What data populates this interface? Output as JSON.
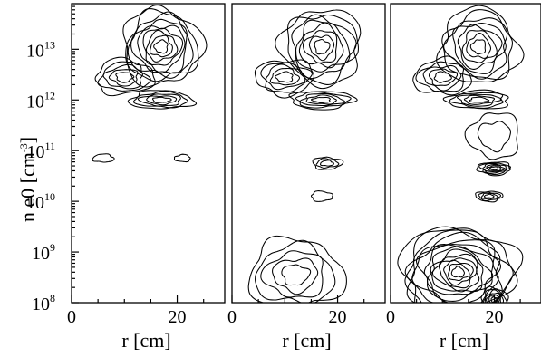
{
  "chart_data": {
    "type": "contour",
    "panels": [
      {
        "id": "left",
        "xlabel": "r [cm]",
        "x_ticks": [
          "0",
          "20"
        ],
        "show_y_axis": true,
        "features": [
          {
            "r": 17,
            "log_ne": 13.05,
            "levels": 9,
            "rx": 7.5,
            "ry": 0.75
          },
          {
            "r": 10,
            "log_ne": 12.45,
            "levels": 5,
            "rx": 5.5,
            "ry": 0.35
          },
          {
            "r": 17,
            "log_ne": 12.0,
            "levels": 5,
            "rx": 6.0,
            "ry": 0.18
          },
          {
            "r": 6,
            "log_ne": 10.85,
            "levels": 1,
            "rx": 2.0,
            "ry": 0.08
          },
          {
            "r": 21,
            "log_ne": 10.85,
            "levels": 1,
            "rx": 1.5,
            "ry": 0.07
          }
        ]
      },
      {
        "id": "middle",
        "xlabel": "r [cm]",
        "x_ticks": [
          "0",
          "20"
        ],
        "show_y_axis": false,
        "features": [
          {
            "r": 17,
            "log_ne": 13.05,
            "levels": 8,
            "rx": 7.5,
            "ry": 0.75
          },
          {
            "r": 10,
            "log_ne": 12.45,
            "levels": 5,
            "rx": 5.5,
            "ry": 0.35
          },
          {
            "r": 17,
            "log_ne": 12.0,
            "levels": 5,
            "rx": 6.0,
            "ry": 0.18
          },
          {
            "r": 18,
            "log_ne": 10.75,
            "levels": 3,
            "rx": 2.8,
            "ry": 0.12
          },
          {
            "r": 17,
            "log_ne": 10.1,
            "levels": 1,
            "rx": 2.0,
            "ry": 0.1
          },
          {
            "r": 12,
            "log_ne": 8.55,
            "levels": 5,
            "rx": 9.0,
            "ry": 0.7
          }
        ]
      },
      {
        "id": "right",
        "xlabel": "r [cm]",
        "x_ticks": [
          "0",
          "20"
        ],
        "show_y_axis": false,
        "features": [
          {
            "r": 17,
            "log_ne": 13.05,
            "levels": 8,
            "rx": 7.5,
            "ry": 0.75
          },
          {
            "r": 10,
            "log_ne": 12.45,
            "levels": 5,
            "rx": 5.5,
            "ry": 0.35
          },
          {
            "r": 17,
            "log_ne": 12.0,
            "levels": 5,
            "rx": 6.0,
            "ry": 0.18
          },
          {
            "r": 20,
            "log_ne": 11.3,
            "levels": 2,
            "rx": 5.0,
            "ry": 0.45
          },
          {
            "r": 20,
            "log_ne": 10.65,
            "levels": 6,
            "rx": 3.2,
            "ry": 0.13
          },
          {
            "r": 19,
            "log_ne": 10.1,
            "levels": 4,
            "rx": 2.6,
            "ry": 0.1
          },
          {
            "r": 13,
            "log_ne": 8.6,
            "levels": 14,
            "rx": 11.0,
            "ry": 0.9
          },
          {
            "r": 20,
            "log_ne": 8.05,
            "levels": 6,
            "rx": 2.5,
            "ry": 0.25
          }
        ]
      }
    ],
    "ylabel_main": "n e0 [cm",
    "ylabel_sup": "-3",
    "ylabel_end": "]",
    "y_ticks": [
      {
        "exp": 13,
        "label": "10",
        "sup": "13"
      },
      {
        "exp": 12,
        "label": "10",
        "sup": "12"
      },
      {
        "exp": 11,
        "label": "10",
        "sup": "11"
      },
      {
        "exp": 10,
        "label": "10",
        "sup": "10"
      },
      {
        "exp": 9,
        "label": "10",
        "sup": "9"
      },
      {
        "exp": 8,
        "label": "10",
        "sup": "8"
      }
    ],
    "x_range": [
      0,
      29
    ],
    "y_range_log10": [
      8,
      13.9
    ],
    "y_scale": "log",
    "grid": false
  }
}
